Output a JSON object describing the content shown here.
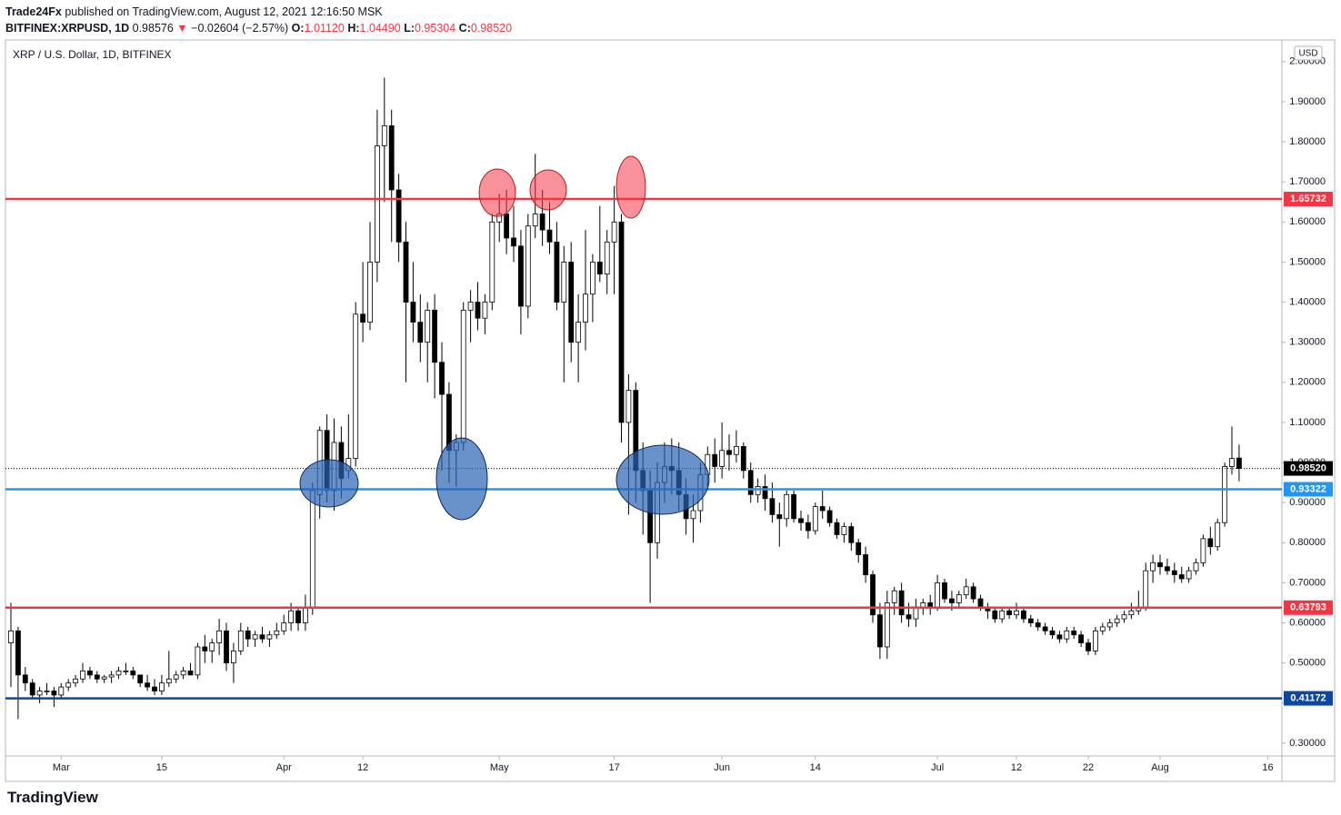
{
  "header": {
    "author": "Trade24Fx",
    "published": "published on TradingView.com, August 12, 2021 12:16:50 MSK",
    "symbol": "BITFINEX:XRPUSD, 1D",
    "price": "0.98576",
    "arrow": "▼",
    "change": "−0.02604 (−2.57%)",
    "ohlc": [
      {
        "label": "O:",
        "value": "1.01120"
      },
      {
        "label": "H:",
        "value": "1.04490"
      },
      {
        "label": "L:",
        "value": "0.95304"
      },
      {
        "label": "C:",
        "value": "0.98520"
      }
    ]
  },
  "chart_data": {
    "type": "candlestick",
    "title": "XRP / U.S. Dollar, 1D, BITFINEX",
    "currency": "USD",
    "up_color": "#ffffff",
    "down_color": "#000000",
    "open": [
      0.55,
      0.58,
      0.47,
      0.45,
      0.42,
      0.43,
      0.43,
      0.42,
      0.44,
      0.45,
      0.46,
      0.48,
      0.47,
      0.46,
      0.465,
      0.47,
      0.48,
      0.48,
      0.47,
      0.45,
      0.44,
      0.43,
      0.45,
      0.46,
      0.47,
      0.48,
      0.47,
      0.54,
      0.53,
      0.55,
      0.58,
      0.5,
      0.53,
      0.58,
      0.56,
      0.57,
      0.56,
      0.57,
      0.58,
      0.6,
      0.63,
      0.6,
      0.64,
      0.92,
      1.08,
      0.93,
      1.05,
      0.98,
      1.01,
      1.37,
      1.35,
      1.5,
      1.79,
      1.84,
      1.68,
      1.55,
      1.4,
      1.35,
      1.3,
      1.38,
      1.25,
      1.17,
      1.03,
      1.05,
      1.38,
      1.4,
      1.36,
      1.4,
      1.6,
      1.62,
      1.56,
      1.54,
      1.39,
      1.59,
      1.62,
      1.58,
      1.55,
      1.4,
      1.5,
      1.3,
      1.35,
      1.42,
      1.5,
      1.47,
      1.55,
      1.6,
      1.1,
      1.18,
      0.98,
      0.93,
      0.8,
      0.95,
      0.99,
      0.98,
      0.92,
      0.86,
      0.88,
      0.97,
      1.02,
      0.99,
      1.03,
      1.02,
      1.04,
      0.98,
      0.92,
      0.94,
      0.91,
      0.87,
      0.86,
      0.92,
      0.86,
      0.85,
      0.83,
      0.89,
      0.88,
      0.85,
      0.82,
      0.84,
      0.8,
      0.77,
      0.72,
      0.62,
      0.54,
      0.65,
      0.68,
      0.62,
      0.61,
      0.64,
      0.65,
      0.64,
      0.7,
      0.66,
      0.65,
      0.67,
      0.69,
      0.66,
      0.64,
      0.63,
      0.61,
      0.63,
      0.62,
      0.63,
      0.61,
      0.6,
      0.59,
      0.58,
      0.57,
      0.56,
      0.58,
      0.57,
      0.55,
      0.53,
      0.58,
      0.59,
      0.6,
      0.61,
      0.62,
      0.63,
      0.64,
      0.73,
      0.75,
      0.74,
      0.73,
      0.72,
      0.71,
      0.73,
      0.75,
      0.81,
      0.79,
      0.85,
      0.99,
      1.0112
    ],
    "high": [
      0.65,
      0.59,
      0.49,
      0.46,
      0.44,
      0.45,
      0.44,
      0.45,
      0.46,
      0.47,
      0.5,
      0.49,
      0.48,
      0.47,
      0.48,
      0.49,
      0.5,
      0.49,
      0.47,
      0.47,
      0.46,
      0.47,
      0.53,
      0.48,
      0.49,
      0.5,
      0.55,
      0.57,
      0.56,
      0.61,
      0.6,
      0.55,
      0.6,
      0.59,
      0.58,
      0.59,
      0.58,
      0.6,
      0.62,
      0.65,
      0.64,
      0.67,
      0.95,
      1.09,
      1.12,
      1.11,
      1.09,
      1.12,
      1.4,
      1.5,
      1.6,
      1.88,
      1.96,
      1.88,
      1.72,
      1.6,
      1.5,
      1.42,
      1.4,
      1.42,
      1.3,
      1.2,
      1.07,
      1.4,
      1.43,
      1.45,
      1.42,
      1.62,
      1.67,
      1.68,
      1.64,
      1.58,
      1.62,
      1.77,
      1.68,
      1.65,
      1.6,
      1.54,
      1.55,
      1.42,
      1.58,
      1.52,
      1.64,
      1.58,
      1.69,
      1.62,
      1.22,
      1.2,
      1.05,
      0.98,
      1.0,
      1.05,
      1.06,
      1.05,
      0.96,
      0.92,
      1.0,
      1.04,
      1.06,
      1.1,
      1.07,
      1.08,
      1.05,
      1.0,
      0.96,
      0.97,
      0.95,
      0.9,
      0.93,
      0.93,
      0.88,
      0.87,
      0.9,
      0.93,
      0.89,
      0.86,
      0.85,
      0.85,
      0.81,
      0.79,
      0.73,
      0.65,
      0.68,
      0.69,
      0.7,
      0.65,
      0.66,
      0.66,
      0.67,
      0.72,
      0.71,
      0.68,
      0.68,
      0.71,
      0.7,
      0.67,
      0.65,
      0.64,
      0.64,
      0.64,
      0.65,
      0.64,
      0.62,
      0.61,
      0.6,
      0.59,
      0.58,
      0.59,
      0.59,
      0.58,
      0.56,
      0.59,
      0.6,
      0.61,
      0.62,
      0.63,
      0.65,
      0.68,
      0.75,
      0.77,
      0.77,
      0.76,
      0.75,
      0.74,
      0.74,
      0.76,
      0.82,
      0.84,
      0.86,
      1.0,
      1.09,
      1.0449
    ],
    "low": [
      0.44,
      0.36,
      0.43,
      0.41,
      0.4,
      0.42,
      0.39,
      0.41,
      0.43,
      0.44,
      0.45,
      0.46,
      0.45,
      0.45,
      0.45,
      0.46,
      0.47,
      0.46,
      0.44,
      0.43,
      0.42,
      0.42,
      0.44,
      0.45,
      0.46,
      0.47,
      0.46,
      0.5,
      0.5,
      0.52,
      0.48,
      0.45,
      0.52,
      0.54,
      0.54,
      0.55,
      0.54,
      0.56,
      0.57,
      0.58,
      0.58,
      0.58,
      0.62,
      0.86,
      0.9,
      0.88,
      0.91,
      0.96,
      0.99,
      1.3,
      1.33,
      1.45,
      1.65,
      1.55,
      1.5,
      1.2,
      1.3,
      1.25,
      1.2,
      1.16,
      0.98,
      0.95,
      0.94,
      1.03,
      1.3,
      1.33,
      1.32,
      1.38,
      1.55,
      1.52,
      1.5,
      1.32,
      1.36,
      1.56,
      1.54,
      1.52,
      1.38,
      1.2,
      1.25,
      1.2,
      1.28,
      1.35,
      1.45,
      1.42,
      1.42,
      1.05,
      0.87,
      0.9,
      0.82,
      0.65,
      0.76,
      0.9,
      0.92,
      0.88,
      0.82,
      0.8,
      0.85,
      0.94,
      0.95,
      0.96,
      0.98,
      1.0,
      0.96,
      0.9,
      0.9,
      0.88,
      0.85,
      0.79,
      0.84,
      0.85,
      0.83,
      0.81,
      0.82,
      0.86,
      0.84,
      0.81,
      0.8,
      0.78,
      0.75,
      0.7,
      0.6,
      0.51,
      0.51,
      0.62,
      0.6,
      0.59,
      0.59,
      0.62,
      0.62,
      0.63,
      0.65,
      0.63,
      0.64,
      0.66,
      0.65,
      0.63,
      0.61,
      0.6,
      0.6,
      0.61,
      0.61,
      0.6,
      0.59,
      0.58,
      0.57,
      0.56,
      0.55,
      0.55,
      0.56,
      0.54,
      0.52,
      0.52,
      0.57,
      0.58,
      0.59,
      0.6,
      0.61,
      0.62,
      0.63,
      0.7,
      0.72,
      0.72,
      0.7,
      0.7,
      0.7,
      0.72,
      0.74,
      0.77,
      0.78,
      0.84,
      0.97,
      0.95304
    ],
    "close": [
      0.58,
      0.47,
      0.45,
      0.42,
      0.43,
      0.43,
      0.42,
      0.44,
      0.45,
      0.46,
      0.48,
      0.47,
      0.46,
      0.465,
      0.47,
      0.48,
      0.48,
      0.47,
      0.45,
      0.44,
      0.43,
      0.45,
      0.46,
      0.47,
      0.48,
      0.47,
      0.54,
      0.53,
      0.55,
      0.58,
      0.5,
      0.53,
      0.58,
      0.56,
      0.57,
      0.56,
      0.57,
      0.58,
      0.6,
      0.63,
      0.6,
      0.64,
      0.93,
      1.08,
      0.93,
      1.05,
      0.96,
      1.01,
      1.37,
      1.35,
      1.5,
      1.79,
      1.84,
      1.68,
      1.55,
      1.4,
      1.35,
      1.3,
      1.38,
      1.25,
      1.17,
      1.03,
      1.05,
      1.38,
      1.4,
      1.36,
      1.4,
      1.6,
      1.62,
      1.56,
      1.54,
      1.39,
      1.59,
      1.62,
      1.58,
      1.55,
      1.4,
      1.5,
      1.3,
      1.35,
      1.42,
      1.5,
      1.47,
      1.55,
      1.6,
      1.1,
      1.18,
      0.98,
      0.93,
      0.8,
      0.95,
      0.99,
      0.98,
      0.92,
      0.86,
      0.88,
      0.97,
      1.02,
      0.99,
      1.03,
      1.02,
      1.04,
      0.98,
      0.92,
      0.94,
      0.91,
      0.87,
      0.86,
      0.92,
      0.86,
      0.85,
      0.83,
      0.89,
      0.88,
      0.85,
      0.82,
      0.84,
      0.8,
      0.77,
      0.72,
      0.62,
      0.54,
      0.65,
      0.68,
      0.62,
      0.61,
      0.64,
      0.65,
      0.64,
      0.7,
      0.66,
      0.65,
      0.67,
      0.69,
      0.66,
      0.64,
      0.63,
      0.61,
      0.63,
      0.62,
      0.63,
      0.61,
      0.6,
      0.59,
      0.58,
      0.57,
      0.56,
      0.58,
      0.57,
      0.55,
      0.53,
      0.58,
      0.59,
      0.6,
      0.61,
      0.62,
      0.63,
      0.64,
      0.73,
      0.75,
      0.74,
      0.73,
      0.72,
      0.71,
      0.73,
      0.75,
      0.81,
      0.79,
      0.85,
      0.99,
      1.01,
      0.9852
    ],
    "xlim": [
      -0.76,
      176.96
    ],
    "xticks": [
      {
        "value": 7,
        "label": "Mar"
      },
      {
        "value": 21,
        "label": "15"
      },
      {
        "value": 38,
        "label": "Apr"
      },
      {
        "value": 49,
        "label": "12"
      },
      {
        "value": 68,
        "label": "May"
      },
      {
        "value": 84,
        "label": "17"
      },
      {
        "value": 99,
        "label": "Jun"
      },
      {
        "value": 112,
        "label": "14"
      },
      {
        "value": 129,
        "label": "Jul"
      },
      {
        "value": 140,
        "label": "12"
      },
      {
        "value": 150,
        "label": "22"
      },
      {
        "value": 160,
        "label": "Aug"
      },
      {
        "value": 175,
        "label": "16"
      }
    ],
    "ylim": [
      0.268,
      2.054
    ],
    "yticks": [
      {
        "value": 0.3,
        "label": "0.30000"
      },
      {
        "value": 0.4,
        "label": "0.40000"
      },
      {
        "value": 0.5,
        "label": "0.50000"
      },
      {
        "value": 0.6,
        "label": "0.60000"
      },
      {
        "value": 0.7,
        "label": "0.70000"
      },
      {
        "value": 0.8,
        "label": "0.80000"
      },
      {
        "value": 0.9,
        "label": "0.90000"
      },
      {
        "value": 1.0,
        "label": "1.00000"
      },
      {
        "value": 1.1,
        "label": "1.10000"
      },
      {
        "value": 1.2,
        "label": "1.20000"
      },
      {
        "value": 1.3,
        "label": "1.30000"
      },
      {
        "value": 1.4,
        "label": "1.40000"
      },
      {
        "value": 1.5,
        "label": "1.50000"
      },
      {
        "value": 1.6,
        "label": "1.60000"
      },
      {
        "value": 1.7,
        "label": "1.70000"
      },
      {
        "value": 1.8,
        "label": "1.80000"
      },
      {
        "value": 1.9,
        "label": "1.90000"
      },
      {
        "value": 2.0,
        "label": "2.00000"
      }
    ],
    "levels": [
      {
        "value": 1.65732,
        "color": "#f23645"
      },
      {
        "value": 0.93322,
        "color": "#2196f3"
      },
      {
        "value": 0.63793,
        "color": "#f23645"
      },
      {
        "value": 0.41172,
        "color": "#0d47a1"
      }
    ],
    "last_price": {
      "value": 0.9852,
      "label": "0.98520",
      "color": "#000000"
    }
  },
  "footer": {
    "brand": "TradingView"
  }
}
